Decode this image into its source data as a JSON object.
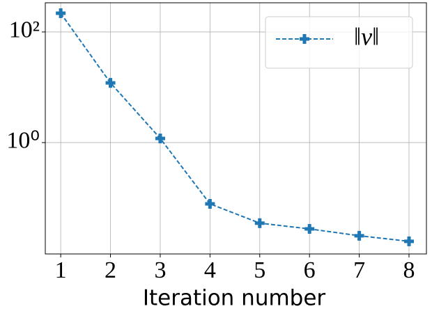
{
  "chart_data": {
    "type": "line",
    "x_label": "Iteration number",
    "x": [
      1,
      2,
      3,
      4,
      5,
      6,
      7,
      8
    ],
    "series": [
      {
        "name": "‖v‖",
        "color": "#1f77b4",
        "values": [
          218,
          12,
          1.19,
          0.078,
          0.035,
          0.0275,
          0.0207,
          0.0164
        ]
      }
    ],
    "xlim": [
      0.69,
      8.35
    ],
    "xticks": [
      1,
      2,
      3,
      4,
      5,
      6,
      7,
      8
    ],
    "ylim": [
      0.0097,
      337
    ],
    "yticks": [
      {
        "value": 100,
        "label": "10²"
      },
      {
        "value": 1,
        "label": "10⁰"
      }
    ],
    "y_scale": "log",
    "grid": true,
    "legend_position": "upper right"
  }
}
